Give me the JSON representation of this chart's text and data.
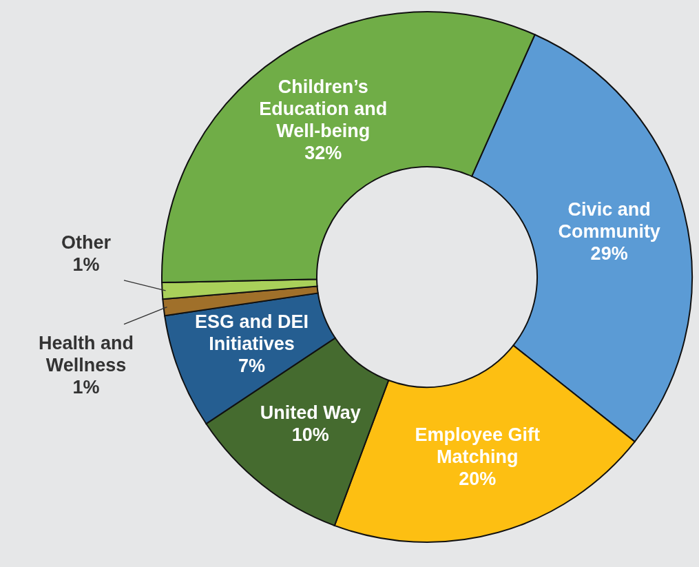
{
  "chart_data": {
    "type": "donut",
    "categories": [
      "Civic and Community",
      "Employee Gift Matching",
      "United Way",
      "ESG and DEI Initiatives",
      "Health and Wellness",
      "Other",
      "Children’s Education and Well-being"
    ],
    "values": [
      29,
      20,
      10,
      7,
      1,
      1,
      32
    ],
    "value_labels": [
      "29%",
      "20%",
      "10%",
      "7%",
      "1%",
      "1%",
      "32%"
    ],
    "colors": [
      "#5b9bd5",
      "#fdbf12",
      "#456b2f",
      "#255e91",
      "#a0702a",
      "#a9d05a",
      "#70ad47"
    ]
  }
}
